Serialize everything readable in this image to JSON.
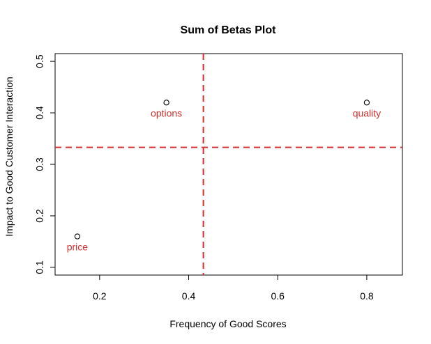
{
  "chart_data": {
    "type": "scatter",
    "title": "Sum of Betas Plot",
    "xlabel": "Frequency of Good Scores",
    "ylabel": "Impact to Good Customer Interaction",
    "xlim": [
      0.1,
      0.88
    ],
    "ylim": [
      0.085,
      0.515
    ],
    "xticks": [
      0.2,
      0.4,
      0.6,
      0.8
    ],
    "xtick_labels": [
      "0.2",
      "0.4",
      "0.6",
      "0.8"
    ],
    "yticks": [
      0.1,
      0.2,
      0.3,
      0.4,
      0.5
    ],
    "ytick_labels": [
      "0.1",
      "0.2",
      "0.3",
      "0.4",
      "0.5"
    ],
    "grid": false,
    "points": [
      {
        "x": 0.15,
        "y": 0.16,
        "label": "price"
      },
      {
        "x": 0.35,
        "y": 0.42,
        "label": "options"
      },
      {
        "x": 0.8,
        "y": 0.42,
        "label": "quality"
      }
    ],
    "reference_lines": {
      "vertical_x": 0.433,
      "horizontal_y": 0.333,
      "color": "#d32f2f",
      "style": "dashed"
    },
    "label_color": "#d32f2f",
    "point_color": "#000000"
  }
}
